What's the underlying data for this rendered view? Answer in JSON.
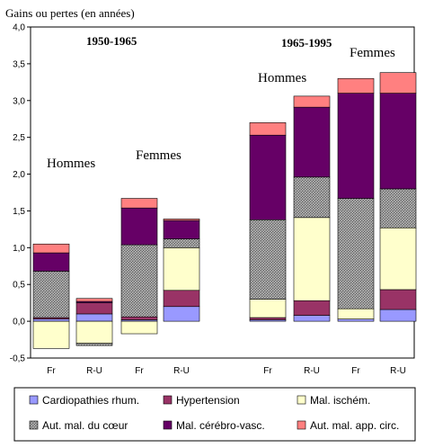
{
  "chart_data": {
    "type": "bar",
    "stacked": true,
    "ylabel": "Gains ou pertes (en années)",
    "ylim": [
      -0.5,
      4.0
    ],
    "yticks": [
      "4,0",
      "3,5",
      "3,0",
      "2,5",
      "2,0",
      "1,5",
      "1,0",
      "0,5",
      "0,0",
      "-0,5"
    ],
    "categories": [
      "Fr",
      "R-U",
      "Fr",
      "R-U",
      "Fr",
      "R-U",
      "Fr",
      "R-U"
    ],
    "period_labels": [
      "1950-1965",
      "1965-1995"
    ],
    "group_labels": [
      "Hommes",
      "Femmes",
      "Hommes",
      "Femmes"
    ],
    "series": [
      {
        "name": "Cardiopathies rhum.",
        "color": "#9999ff",
        "pattern": "solid",
        "values": [
          0.03,
          0.1,
          0.02,
          0.2,
          0.02,
          0.08,
          0.03,
          0.16
        ]
      },
      {
        "name": "Hypertension",
        "color": "#993366",
        "pattern": "solid",
        "values": [
          0.02,
          0.15,
          0.04,
          0.22,
          0.03,
          0.2,
          0.0,
          0.27
        ]
      },
      {
        "name": "Mal. ischém.",
        "color": "#ffffcc",
        "pattern": "solid",
        "values": [
          -0.37,
          -0.3,
          -0.17,
          0.58,
          0.25,
          1.13,
          0.14,
          0.84
        ]
      },
      {
        "name": "Aut. mal. du cœur",
        "color": "#999999",
        "pattern": "hatched",
        "values": [
          0.63,
          -0.03,
          0.98,
          0.12,
          1.08,
          0.55,
          1.5,
          0.53
        ]
      },
      {
        "name": "Mal. cérébro-vasc.",
        "color": "#660066",
        "pattern": "solid",
        "values": [
          0.25,
          0.02,
          0.5,
          0.25,
          1.15,
          0.95,
          1.43,
          1.3
        ]
      },
      {
        "name": "Aut. mal. app. circ.",
        "color": "#ff8080",
        "pattern": "solid",
        "values": [
          0.12,
          0.04,
          0.13,
          0.02,
          0.17,
          0.15,
          0.2,
          0.28
        ]
      }
    ]
  }
}
